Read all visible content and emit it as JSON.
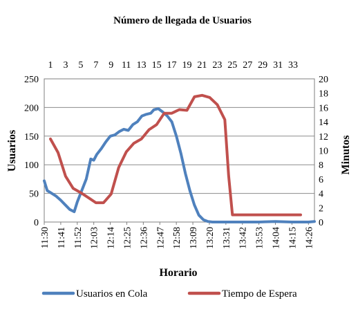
{
  "chart_data": {
    "type": "line",
    "title": "Número de llegada de Usuarios",
    "xlabel": "Horario",
    "ylabel": "Usuarios",
    "y2label": "Minutos",
    "ylim": [
      0,
      250
    ],
    "y2lim": [
      0,
      20
    ],
    "yticks": [
      "0",
      "50",
      "100",
      "150",
      "200",
      "250"
    ],
    "y2ticks": [
      "0",
      "2",
      "4",
      "6",
      "8",
      "10",
      "12",
      "14",
      "16",
      "18",
      "20"
    ],
    "xticks": [
      "11:30",
      "11:41",
      "11:52",
      "12:03",
      "12:14",
      "12:25",
      "12:36",
      "12:47",
      "12:58",
      "13:09",
      "13:20",
      "13:31",
      "13:42",
      "13:53",
      "14:04",
      "14:15",
      "14:26"
    ],
    "x2ticks": [
      "1",
      "3",
      "5",
      "7",
      "9",
      "11",
      "13",
      "15",
      "17",
      "19",
      "21",
      "23",
      "25",
      "27",
      "29",
      "31",
      "33"
    ],
    "x2lim": [
      1,
      35
    ],
    "grid": true,
    "legend_position": "bottom",
    "series": [
      {
        "name": "Usuarios en Cola",
        "axis": "primary",
        "color": "#4f81bd",
        "x": [
          "11:30",
          "11:32",
          "11:35",
          "11:38",
          "11:41",
          "11:44",
          "11:47",
          "11:50",
          "11:52",
          "11:55",
          "11:58",
          "12:01",
          "12:03",
          "12:05",
          "12:08",
          "12:11",
          "12:14",
          "12:17",
          "12:20",
          "12:23",
          "12:26",
          "12:29",
          "12:32",
          "12:35",
          "12:38",
          "12:41",
          "12:43",
          "12:46",
          "12:49",
          "12:52",
          "12:55",
          "12:58",
          "13:01",
          "13:04",
          "13:07",
          "13:10",
          "13:13",
          "13:16",
          "13:19",
          "13:22",
          "13:25",
          "13:28",
          "13:31",
          "13:42",
          "13:53",
          "14:04",
          "14:15",
          "14:26",
          "14:30"
        ],
        "y": [
          72,
          55,
          50,
          45,
          38,
          30,
          22,
          18,
          35,
          55,
          75,
          110,
          108,
          118,
          128,
          140,
          150,
          152,
          158,
          162,
          160,
          170,
          175,
          185,
          188,
          190,
          196,
          198,
          192,
          185,
          175,
          150,
          120,
          85,
          55,
          30,
          12,
          4,
          1,
          0,
          0,
          0,
          0,
          0,
          0,
          1,
          0,
          0,
          1
        ]
      },
      {
        "name": "Tiempo de Espera",
        "axis": "secondary",
        "color": "#c0504d",
        "x": [
          1,
          2,
          3,
          4,
          5,
          6,
          7,
          8,
          9,
          10,
          11,
          12,
          13,
          14,
          15,
          16,
          17,
          18,
          19,
          20,
          21,
          22,
          23,
          24,
          24.5,
          25,
          26,
          27,
          28,
          29,
          30,
          31,
          32,
          33,
          34
        ],
        "y": [
          11.6,
          9.7,
          6.4,
          4.7,
          4.1,
          3.4,
          2.7,
          2.7,
          3.9,
          7.6,
          9.8,
          11.0,
          11.6,
          12.9,
          13.6,
          15.2,
          15.2,
          15.7,
          15.6,
          17.5,
          17.7,
          17.4,
          16.4,
          14.3,
          6.5,
          1.0,
          1.0,
          1.0,
          1.0,
          1.0,
          1.0,
          1.0,
          1.0,
          1.0,
          1.0
        ]
      }
    ]
  }
}
